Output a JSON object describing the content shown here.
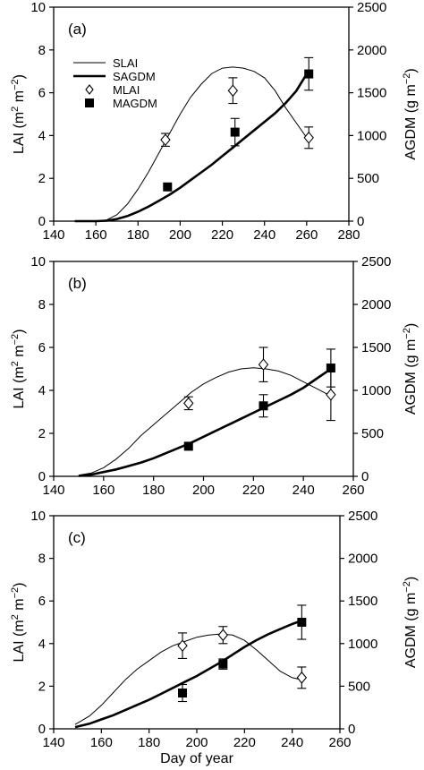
{
  "figure": {
    "xlabel": "Day of year"
  },
  "chart_data": [
    {
      "type": "line",
      "panel_label": "(a)",
      "xlim": [
        140,
        280
      ],
      "xticks": [
        140,
        160,
        180,
        200,
        220,
        240,
        260,
        280
      ],
      "ylim_left": [
        0,
        10
      ],
      "yticks_left": [
        0,
        2,
        4,
        6,
        8,
        10
      ],
      "ylim_right": [
        0,
        2500
      ],
      "yticks_right": [
        0,
        500,
        1000,
        1500,
        2000,
        2500
      ],
      "ylabel_left": {
        "main": "LAI (m",
        "sup1": "2",
        "mid": " m",
        "sup2": "−2",
        "end": ")"
      },
      "ylabel_right": {
        "main": "AGDM (g m",
        "sup1": "−2",
        "end": ")"
      },
      "legend": {
        "placement": "upper-left",
        "entries": [
          "SLAI",
          "SAGDM",
          "MLAI",
          "MAGDM"
        ]
      },
      "series": [
        {
          "name": "SLAI",
          "axis": "left",
          "style": "thin-line",
          "x": [
            150,
            160,
            165,
            170,
            175,
            180,
            185,
            190,
            195,
            200,
            205,
            210,
            215,
            220,
            225,
            230,
            235,
            240,
            245,
            250,
            255,
            260
          ],
          "y": [
            0,
            0,
            0.05,
            0.3,
            0.8,
            1.5,
            2.3,
            3.2,
            4.1,
            5.0,
            5.8,
            6.4,
            6.9,
            7.15,
            7.2,
            7.15,
            7.0,
            6.7,
            6.1,
            5.3,
            4.6,
            3.9
          ]
        },
        {
          "name": "SAGDM",
          "axis": "right",
          "style": "thick-line",
          "x": [
            150,
            160,
            165,
            170,
            175,
            180,
            185,
            190,
            195,
            200,
            205,
            210,
            215,
            220,
            225,
            230,
            235,
            240,
            245,
            250,
            255,
            260
          ],
          "y": [
            0,
            0,
            5,
            25,
            60,
            110,
            170,
            240,
            310,
            390,
            480,
            570,
            660,
            760,
            860,
            960,
            1060,
            1160,
            1260,
            1380,
            1520,
            1720
          ]
        },
        {
          "name": "MLAI",
          "axis": "left",
          "style": "open-diamond",
          "x": [
            193,
            225,
            261
          ],
          "y": [
            3.8,
            6.1,
            3.9
          ],
          "err": [
            0.3,
            0.6,
            0.5
          ]
        },
        {
          "name": "MAGDM",
          "axis": "right",
          "style": "filled-square",
          "x": [
            194,
            226,
            261
          ],
          "y": [
            400,
            1040,
            1720
          ],
          "err": [
            0,
            160,
            190
          ]
        }
      ]
    },
    {
      "type": "line",
      "panel_label": "(b)",
      "xlim": [
        140,
        260
      ],
      "xticks": [
        140,
        160,
        180,
        200,
        220,
        240,
        260
      ],
      "ylim_left": [
        0,
        10
      ],
      "yticks_left": [
        0,
        2,
        4,
        6,
        8,
        10
      ],
      "ylim_right": [
        0,
        2500
      ],
      "yticks_right": [
        0,
        500,
        1000,
        1500,
        2000,
        2500
      ],
      "ylabel_left": {
        "main": "LAI (m",
        "sup1": "2",
        "mid": " m",
        "sup2": "−2",
        "end": ")"
      },
      "ylabel_right": {
        "main": "AGDM (g m",
        "sup1": "−2",
        "end": ")"
      },
      "series": [
        {
          "name": "SLAI",
          "axis": "left",
          "style": "thin-line",
          "x": [
            150,
            155,
            160,
            165,
            170,
            175,
            180,
            185,
            190,
            195,
            200,
            205,
            210,
            215,
            220,
            225,
            230,
            235,
            240,
            245,
            250
          ],
          "y": [
            0.05,
            0.15,
            0.4,
            0.8,
            1.3,
            1.9,
            2.4,
            2.9,
            3.4,
            3.9,
            4.3,
            4.6,
            4.85,
            5.0,
            5.05,
            5.0,
            4.9,
            4.7,
            4.4,
            4.1,
            3.8
          ]
        },
        {
          "name": "SAGDM",
          "axis": "right",
          "style": "thick-line",
          "x": [
            150,
            155,
            160,
            165,
            170,
            175,
            180,
            185,
            190,
            195,
            200,
            205,
            210,
            215,
            220,
            225,
            230,
            235,
            240,
            245,
            250
          ],
          "y": [
            5,
            20,
            50,
            80,
            120,
            160,
            210,
            270,
            330,
            390,
            460,
            530,
            600,
            670,
            740,
            810,
            880,
            950,
            1030,
            1130,
            1230
          ]
        },
        {
          "name": "MLAI",
          "axis": "left",
          "style": "open-diamond",
          "x": [
            194,
            224,
            251
          ],
          "y": [
            3.4,
            5.2,
            3.8
          ],
          "err": [
            0.3,
            0.8,
            1.2
          ]
        },
        {
          "name": "MAGDM",
          "axis": "right",
          "style": "filled-square",
          "x": [
            194,
            224,
            251
          ],
          "y": [
            350,
            820,
            1260
          ],
          "err": [
            0,
            130,
            220
          ]
        }
      ]
    },
    {
      "type": "line",
      "panel_label": "(c)",
      "xlim": [
        140,
        260
      ],
      "xticks": [
        140,
        160,
        180,
        200,
        220,
        240,
        260
      ],
      "ylim_left": [
        0,
        10
      ],
      "yticks_left": [
        0,
        2,
        4,
        6,
        8,
        10
      ],
      "ylim_right": [
        0,
        2500
      ],
      "yticks_right": [
        0,
        500,
        1000,
        1500,
        2000,
        2500
      ],
      "ylabel_left": {
        "main": "LAI (m",
        "sup1": "2",
        "mid": " m",
        "sup2": "−2",
        "end": ")"
      },
      "ylabel_right": {
        "main": "AGDM (g m",
        "sup1": "−2",
        "end": ")"
      },
      "series": [
        {
          "name": "SLAI",
          "axis": "left",
          "style": "thin-line",
          "x": [
            149,
            155,
            160,
            165,
            170,
            175,
            180,
            185,
            190,
            195,
            200,
            205,
            210,
            215,
            220,
            225,
            230,
            235,
            240,
            244
          ],
          "y": [
            0.2,
            0.6,
            1.1,
            1.7,
            2.3,
            2.8,
            3.2,
            3.6,
            3.9,
            4.1,
            4.3,
            4.4,
            4.45,
            4.4,
            4.15,
            3.7,
            3.2,
            2.7,
            2.4,
            2.3
          ]
        },
        {
          "name": "SAGDM",
          "axis": "right",
          "style": "thick-line",
          "x": [
            149,
            155,
            160,
            165,
            170,
            175,
            180,
            185,
            190,
            195,
            200,
            205,
            210,
            215,
            220,
            225,
            230,
            235,
            240,
            244
          ],
          "y": [
            20,
            60,
            110,
            160,
            220,
            280,
            340,
            410,
            480,
            550,
            620,
            700,
            780,
            870,
            960,
            1040,
            1110,
            1170,
            1230,
            1270
          ]
        },
        {
          "name": "MLAI",
          "axis": "left",
          "style": "open-diamond",
          "x": [
            194,
            211,
            244
          ],
          "y": [
            3.9,
            4.4,
            2.4
          ],
          "err": [
            0.6,
            0.4,
            0.5
          ]
        },
        {
          "name": "MAGDM",
          "axis": "right",
          "style": "filled-square",
          "x": [
            194,
            211,
            244
          ],
          "y": [
            420,
            760,
            1250
          ],
          "err": [
            100,
            60,
            200
          ]
        }
      ]
    }
  ]
}
